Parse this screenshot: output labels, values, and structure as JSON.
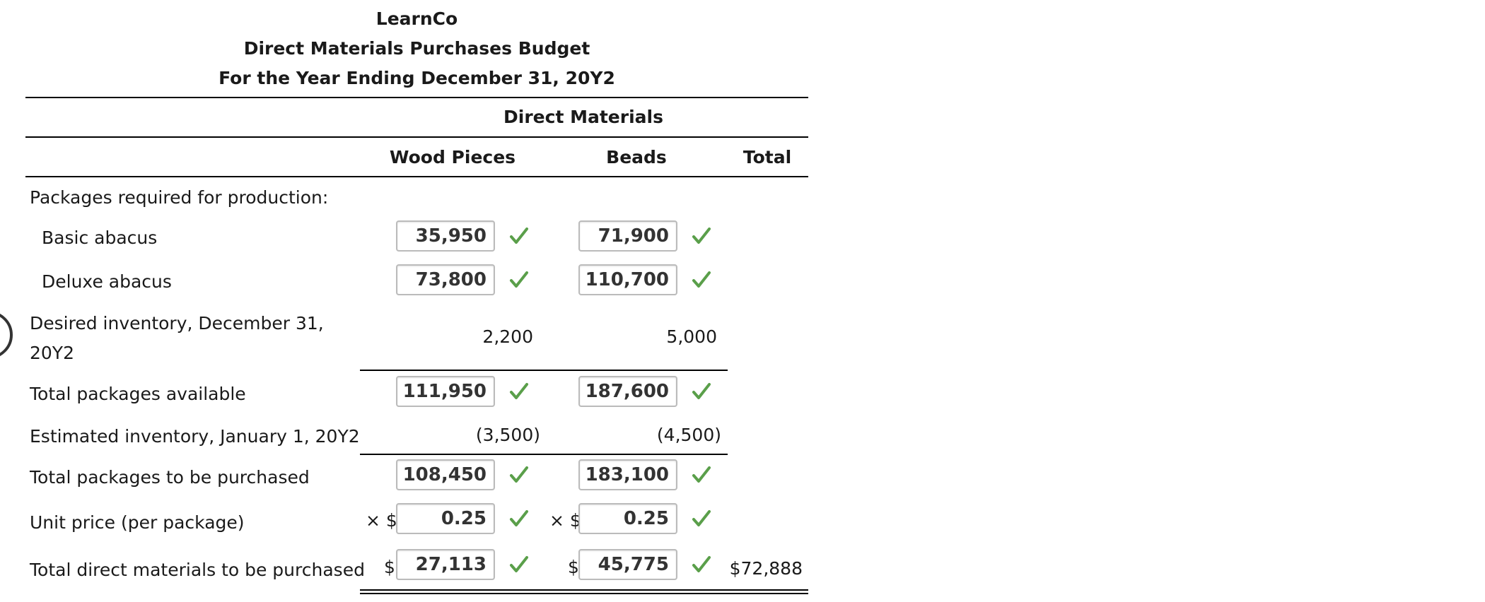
{
  "header": {
    "company": "LearnCo",
    "report": "Direct Materials Purchases Budget",
    "period": "For the Year Ending December 31, 20Y2"
  },
  "columns": {
    "group": "Direct Materials",
    "wood": "Wood Pieces",
    "beads": "Beads",
    "total": "Total"
  },
  "rows": {
    "packages_required": "Packages required for production:",
    "basic": {
      "label": "Basic abacus",
      "wood": "35,950",
      "beads": "71,900"
    },
    "deluxe": {
      "label": "Deluxe abacus",
      "wood": "73,800",
      "beads": "110,700"
    },
    "desired": {
      "label_line1": "Desired inventory, December 31,",
      "label_line2": "20Y2",
      "wood": "2,200",
      "beads": "5,000"
    },
    "total_available": {
      "label": "Total packages available",
      "wood": "111,950",
      "beads": "187,600"
    },
    "estimated": {
      "label": "Estimated inventory, January 1, 20Y2",
      "wood": "(3,500)",
      "beads": "(4,500)"
    },
    "to_purchase": {
      "label": "Total packages to be purchased",
      "wood": "108,450",
      "beads": "183,100"
    },
    "unit_price": {
      "label": "Unit price (per package)",
      "prefix": "× $",
      "wood": "0.25",
      "beads": "0.25"
    },
    "total_dm": {
      "label": "Total direct materials to be purchased",
      "prefix": "$",
      "wood": "27,113",
      "beads": "45,775",
      "total": "$72,888"
    }
  },
  "colors": {
    "check": "#5a9f4a"
  }
}
